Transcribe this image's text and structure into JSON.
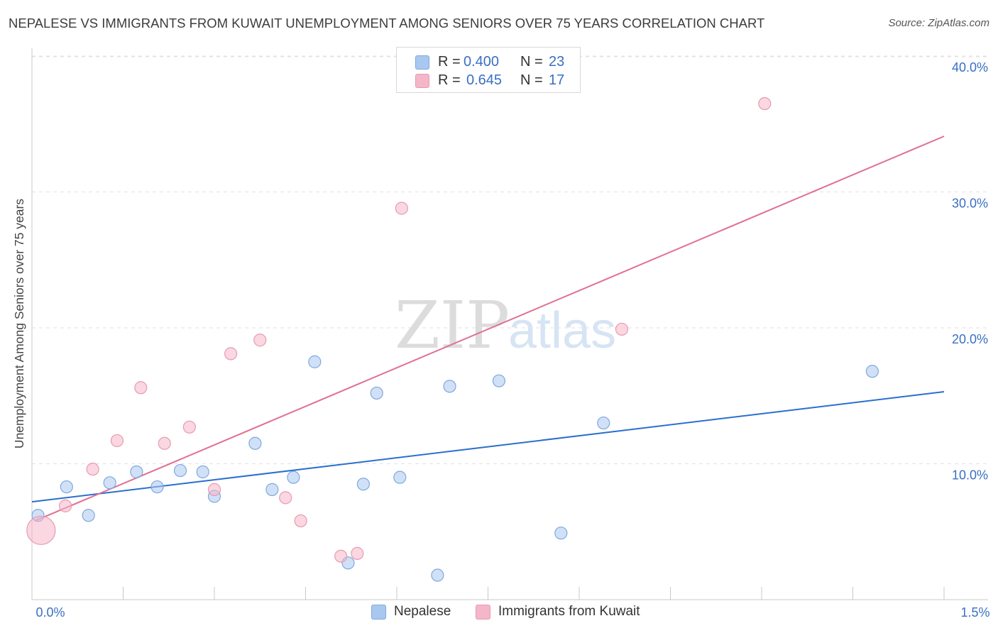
{
  "title": "NEPALESE VS IMMIGRANTS FROM KUWAIT UNEMPLOYMENT AMONG SENIORS OVER 75 YEARS CORRELATION CHART",
  "source": "Source: ZipAtlas.com",
  "watermark": {
    "zip": "ZIP",
    "atlas": "atlas"
  },
  "legend": {
    "rows": [
      {
        "r_label": "R =",
        "r_value": "0.400",
        "n_label": "N =",
        "n_value": "23",
        "color": "#a9c8f0"
      },
      {
        "r_label": "R =",
        "r_value": "0.645",
        "n_label": "N =",
        "n_value": "17",
        "color": "#f5b6c9"
      }
    ]
  },
  "bottom_legend": [
    {
      "label": "Nepalese",
      "color": "#a9c8f0"
    },
    {
      "label": "Immigrants from Kuwait",
      "color": "#f5b6c9"
    }
  ],
  "chart_data": {
    "type": "scatter",
    "title": "NEPALESE VS IMMIGRANTS FROM KUWAIT UNEMPLOYMENT AMONG SENIORS OVER 75 YEARS CORRELATION CHART",
    "xlabel": "",
    "ylabel": "Unemployment Among Seniors over 75 years",
    "xlim": [
      0,
      1.5
    ],
    "ylim": [
      0,
      40
    ],
    "x_tick_labels": {
      "left": "0.0%",
      "right": "1.5%"
    },
    "y_ticks": [
      10,
      20,
      30,
      40
    ],
    "y_tick_labels": [
      "10.0%",
      "20.0%",
      "30.0%",
      "40.0%"
    ],
    "grid": true,
    "series": [
      {
        "name": "Nepalese",
        "color": "#a9c8f0",
        "stroke": "#7fa8dd",
        "line_color": "#2a6fcf",
        "trend": {
          "x": [
            0,
            1.5
          ],
          "y": [
            7.2,
            15.3
          ]
        },
        "points": [
          {
            "x": 0.01,
            "y": 6.2
          },
          {
            "x": 0.057,
            "y": 8.3
          },
          {
            "x": 0.093,
            "y": 6.2
          },
          {
            "x": 0.128,
            "y": 8.6
          },
          {
            "x": 0.172,
            "y": 9.4
          },
          {
            "x": 0.206,
            "y": 8.3
          },
          {
            "x": 0.244,
            "y": 9.5
          },
          {
            "x": 0.281,
            "y": 9.4
          },
          {
            "x": 0.3,
            "y": 7.6
          },
          {
            "x": 0.367,
            "y": 11.5
          },
          {
            "x": 0.395,
            "y": 8.1
          },
          {
            "x": 0.43,
            "y": 9.0
          },
          {
            "x": 0.465,
            "y": 17.5
          },
          {
            "x": 0.52,
            "y": 2.7
          },
          {
            "x": 0.545,
            "y": 8.5
          },
          {
            "x": 0.567,
            "y": 15.2
          },
          {
            "x": 0.605,
            "y": 9.0
          },
          {
            "x": 0.667,
            "y": 1.8
          },
          {
            "x": 0.687,
            "y": 15.7
          },
          {
            "x": 0.768,
            "y": 16.1
          },
          {
            "x": 0.87,
            "y": 4.9
          },
          {
            "x": 0.94,
            "y": 13.0
          },
          {
            "x": 1.382,
            "y": 16.8
          }
        ]
      },
      {
        "name": "Immigrants from Kuwait",
        "color": "#f5b6c9",
        "stroke": "#e79ab2",
        "line_color": "#e0708f",
        "trend": {
          "x": [
            0.005,
            1.5
          ],
          "y": [
            5.8,
            34.1
          ]
        },
        "points": [
          {
            "x": 0.015,
            "y": 5.1,
            "size": "large"
          },
          {
            "x": 0.055,
            "y": 6.9
          },
          {
            "x": 0.1,
            "y": 9.6
          },
          {
            "x": 0.14,
            "y": 11.7
          },
          {
            "x": 0.179,
            "y": 15.6
          },
          {
            "x": 0.218,
            "y": 11.5
          },
          {
            "x": 0.259,
            "y": 12.7
          },
          {
            "x": 0.3,
            "y": 8.1
          },
          {
            "x": 0.327,
            "y": 18.1
          },
          {
            "x": 0.375,
            "y": 19.1
          },
          {
            "x": 0.417,
            "y": 7.5
          },
          {
            "x": 0.442,
            "y": 5.8
          },
          {
            "x": 0.508,
            "y": 3.2
          },
          {
            "x": 0.535,
            "y": 3.4
          },
          {
            "x": 0.608,
            "y": 28.8
          },
          {
            "x": 0.97,
            "y": 19.9
          },
          {
            "x": 1.205,
            "y": 36.5
          }
        ]
      }
    ]
  }
}
